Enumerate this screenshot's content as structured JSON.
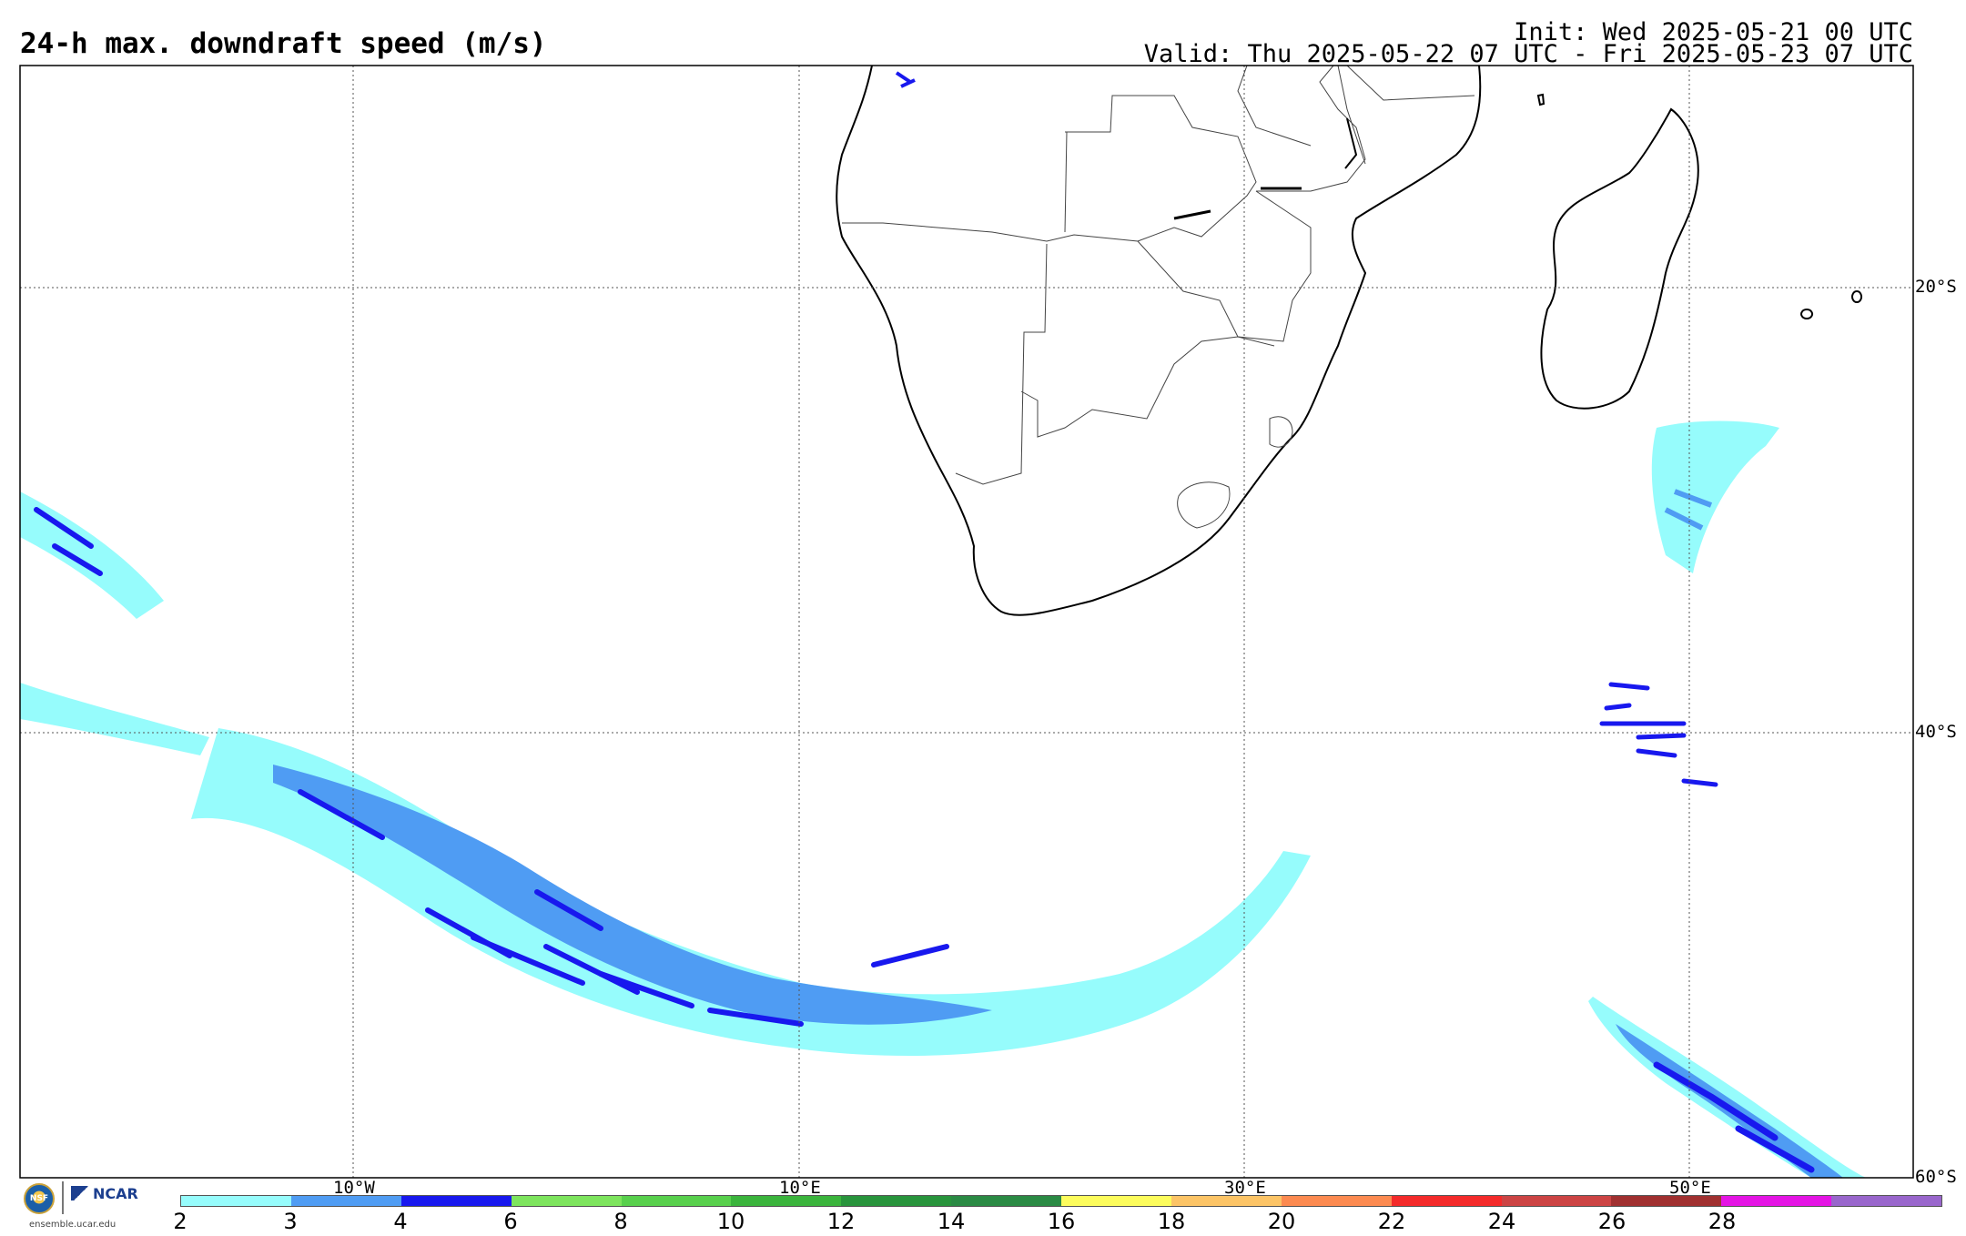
{
  "header": {
    "title": "24-h max. downdraft speed (m/s)",
    "init": "Init: Wed 2025-05-21 00 UTC",
    "valid": "Valid: Thu 2025-05-22 07 UTC - Fri 2025-05-23 07 UTC"
  },
  "map": {
    "region": "Southern Africa and South Atlantic / SW Indian Ocean",
    "lon_range": [
      -25,
      60
    ],
    "lat_range": [
      -60,
      -10
    ],
    "grid": true,
    "lon_labels": [
      "10°W",
      "10°E",
      "30°E",
      "50°E"
    ],
    "lat_labels": [
      "20°S",
      "40°S",
      "60°S"
    ],
    "land_color": "#ffffff",
    "boundary_color": "#000000"
  },
  "colorbar": {
    "ticks": [
      "2",
      "3",
      "4",
      "6",
      "8",
      "10",
      "12",
      "14",
      "16",
      "18",
      "20",
      "22",
      "24",
      "26",
      "28"
    ],
    "colors": [
      "#96fcfc",
      "#4f9cf3",
      "#1818ee",
      "#7de45d",
      "#58d04c",
      "#3ab43c",
      "#28943c",
      "#2a8a44",
      "#fcfc5c",
      "#fcc466",
      "#fc8a50",
      "#f42a2a",
      "#cc4444",
      "#a03030",
      "#e414e4",
      "#9966cc"
    ]
  },
  "logos": {
    "nsf": "NSF",
    "ncar": "NCAR",
    "site": "ensemble.ucar.edu"
  }
}
